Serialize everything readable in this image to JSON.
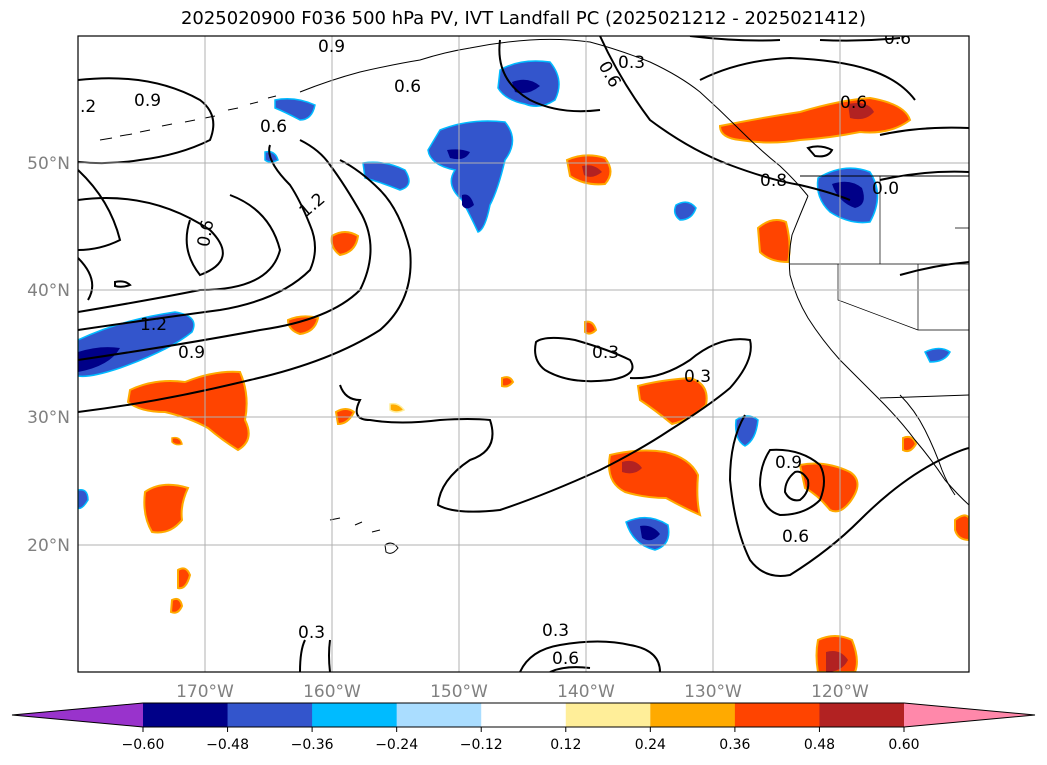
{
  "title": "2025020900 F036 500 hPa PV, IVT Landfall PC (2025021212 - 2025021412)",
  "map": {
    "lon_labels": [
      "170°W",
      "160°W",
      "150°W",
      "140°W",
      "130°W",
      "120°W"
    ],
    "lat_labels": [
      "50°N",
      "40°N",
      "30°N",
      "20°N"
    ],
    "contour_labels": [
      "0.9",
      "0.6",
      ".2",
      "0.9",
      "0.6",
      "0.6",
      "1.2",
      "0.6",
      "1.2",
      "0.9",
      "0.3",
      "0.3",
      "0.9",
      "0.6",
      "0.3",
      "0.3",
      "0.6",
      "0.6",
      "0.3",
      "0.6",
      "0.8",
      "0.0"
    ],
    "colors": {
      "contour": "#000000",
      "grid": "#b0b0b0",
      "coast": "#000000"
    }
  },
  "colorbar": {
    "colors": [
      "#9933cc",
      "#000088",
      "#3355cc",
      "#00bbff",
      "#aaddff",
      "#ffffff",
      "#ffee99",
      "#ffaa00",
      "#ff4400",
      "#b22222",
      "#ff88aa"
    ],
    "tick_labels": [
      "−0.60",
      "−0.48",
      "−0.36",
      "−0.24",
      "−0.12",
      "0.12",
      "0.24",
      "0.36",
      "0.48",
      "0.60"
    ]
  }
}
